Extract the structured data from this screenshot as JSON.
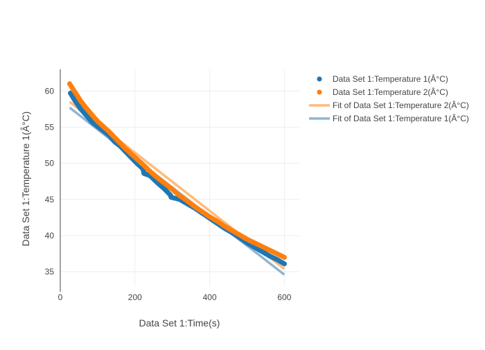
{
  "chart_data": {
    "type": "scatter",
    "title": "",
    "xlabel": "Data Set 1:Time(s)",
    "ylabel": "Data Set 1:Temperature 1(Â°C)",
    "xlim": [
      0,
      640
    ],
    "ylim": [
      33,
      63
    ],
    "x_ticks": [
      0,
      200,
      400,
      600
    ],
    "y_ticks": [
      35,
      40,
      45,
      50,
      55,
      60
    ],
    "grid": true,
    "legend_position": "top-right",
    "series": [
      {
        "name": "Data Set 1:Temperature 1(Â°C)",
        "kind": "markers",
        "color": "#1f77b4",
        "x": [
          27,
          40,
          55,
          70,
          85,
          100,
          115,
          130,
          145,
          160,
          175,
          190,
          205,
          222,
          224,
          240,
          260,
          280,
          295,
          297,
          320,
          340,
          360,
          380,
          400,
          420,
          440,
          460,
          480,
          500,
          520,
          540,
          560,
          580,
          600
        ],
        "y": [
          59.7,
          58.6,
          57.5,
          56.6,
          55.7,
          55.1,
          54.5,
          53.9,
          53.0,
          52.4,
          51.6,
          50.8,
          50.0,
          49.2,
          48.6,
          48.3,
          47.3,
          46.4,
          45.6,
          45.3,
          45.0,
          44.4,
          43.8,
          43.1,
          42.4,
          41.7,
          41.0,
          40.4,
          39.7,
          39.0,
          38.4,
          37.8,
          37.2,
          36.7,
          36.1
        ]
      },
      {
        "name": "Data Set 1:Temperature 2(Â°C)",
        "kind": "markers",
        "color": "#ff7f0e",
        "x": [
          25,
          40,
          55,
          70,
          85,
          100,
          115,
          130,
          145,
          160,
          175,
          190,
          205,
          220,
          240,
          260,
          280,
          300,
          320,
          340,
          360,
          380,
          400,
          420,
          440,
          460,
          480,
          500,
          520,
          540,
          560,
          580,
          600
        ],
        "y": [
          61.0,
          59.8,
          58.6,
          57.6,
          56.7,
          55.8,
          55.1,
          54.4,
          53.6,
          52.8,
          52.0,
          51.3,
          50.6,
          49.9,
          48.9,
          48.0,
          47.2,
          46.4,
          45.5,
          44.8,
          44.0,
          43.3,
          42.6,
          42.0,
          41.3,
          40.7,
          40.1,
          39.5,
          39.0,
          38.5,
          38.0,
          37.5,
          37.0
        ]
      },
      {
        "name": "Fit of Data Set 1:Temperature 2(Â°C)",
        "kind": "line",
        "color": "#ffbb78",
        "x": [
          25,
          600
        ],
        "y": [
          58.5,
          35.4
        ]
      },
      {
        "name": "Fit of Data Set 1:Temperature 1(Â°C)",
        "kind": "line",
        "color": "#8fb4d4",
        "x": [
          25,
          600
        ],
        "y": [
          57.7,
          34.6
        ]
      }
    ]
  }
}
